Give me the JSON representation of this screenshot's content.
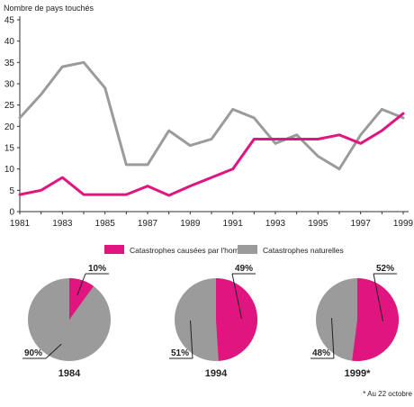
{
  "colors": {
    "man_made": "#e0157f",
    "natural": "#9b9b9b",
    "axis": "#333333"
  },
  "chart_data": [
    {
      "type": "line",
      "ylabel": "Nombre de pays touchés",
      "ylim": [
        0,
        45
      ],
      "yticks": [
        0,
        5,
        10,
        15,
        20,
        25,
        30,
        35,
        40,
        45
      ],
      "xlim": [
        1981,
        1999
      ],
      "xticks": [
        1981,
        1983,
        1985,
        1987,
        1989,
        1991,
        1993,
        1995,
        1997,
        1999
      ],
      "x": [
        1981,
        1982,
        1983,
        1984,
        1985,
        1986,
        1987,
        1988,
        1989,
        1990,
        1991,
        1992,
        1993,
        1994,
        1995,
        1996,
        1997,
        1998,
        1999
      ],
      "legend_position": "below",
      "series": [
        {
          "name": "Catastrophes causées par l'homme",
          "color_key": "man_made",
          "values": [
            4,
            5,
            8,
            4,
            4,
            4,
            6,
            3.8,
            6,
            8,
            10,
            17,
            17,
            17,
            17,
            18,
            16,
            19,
            23
          ]
        },
        {
          "name": "Catastrophes naturelles",
          "color_key": "natural",
          "values": [
            22,
            27.5,
            34,
            35,
            29,
            11,
            11,
            19,
            15.5,
            17,
            24,
            22,
            16,
            18,
            13,
            10,
            18,
            24,
            22
          ]
        }
      ]
    },
    {
      "type": "pie",
      "title": "1984",
      "slices": [
        {
          "label": "10%",
          "value": 10,
          "color_key": "man_made"
        },
        {
          "label": "90%",
          "value": 90,
          "color_key": "natural"
        }
      ]
    },
    {
      "type": "pie",
      "title": "1994",
      "slices": [
        {
          "label": "49%",
          "value": 49,
          "color_key": "man_made"
        },
        {
          "label": "51%",
          "value": 51,
          "color_key": "natural"
        }
      ]
    },
    {
      "type": "pie",
      "title": "1999*",
      "slices": [
        {
          "label": "52%",
          "value": 52,
          "color_key": "man_made"
        },
        {
          "label": "48%",
          "value": 48,
          "color_key": "natural"
        }
      ]
    }
  ],
  "footnote": "* Au 22 octobre"
}
